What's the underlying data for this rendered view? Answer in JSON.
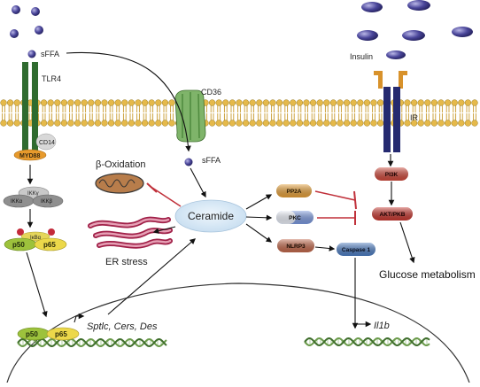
{
  "labels": {
    "sffa_top": "sFFA",
    "sffa_mid": "sFFA",
    "tlr4": "TLR4",
    "cd36": "CD36",
    "cd14": "CD14",
    "myd88": "MYD88",
    "ikk_gamma": "IKKγ",
    "ikk_alpha": "IKKα",
    "ikk_beta": "IKKβ",
    "ikb_alpha": "IκBα",
    "p50_top": "p50",
    "p65_top": "p65",
    "p50_nuc": "p50",
    "p65_nuc": "p65",
    "beta_oxidation": "β-Oxidation",
    "ceramide": "Ceramide",
    "er_stress": "ER stress",
    "pp2a": "PP2A",
    "pkc": "PKC",
    "nlrp3": "NLRP3",
    "caspase1": "Caspase 1",
    "insulin": "Insulin",
    "ir": "IR",
    "pi3k": "PI3K",
    "akt": "AKT/PKB",
    "glucose_metabolism": "Glucose metabolism",
    "genes": "Sptlc, Cers, Des",
    "il1b": "Il1b"
  },
  "colors": {
    "membrane_head": "#e5b94a",
    "membrane_tail": "#c89a2c",
    "tlr4": "#2f6b2f",
    "cd36": "#7fb46a",
    "myd88": "#e79a2c",
    "cd14": "#d8d8d8",
    "ceramide": "#d8e9f6",
    "pp2a": "#e8a23b",
    "pkc": "#6c8fd0",
    "nlrp3": "#c46a4d",
    "caspase": "#4f7fc4",
    "pi3k": "#d04a3c",
    "akt": "#c83a32",
    "ir": "#252a70",
    "ir_cap": "#d8922b",
    "inhibit": "#c0303a",
    "p50": "#9dc23c",
    "p65": "#ecd84a",
    "dna": "#6a9a4a"
  }
}
